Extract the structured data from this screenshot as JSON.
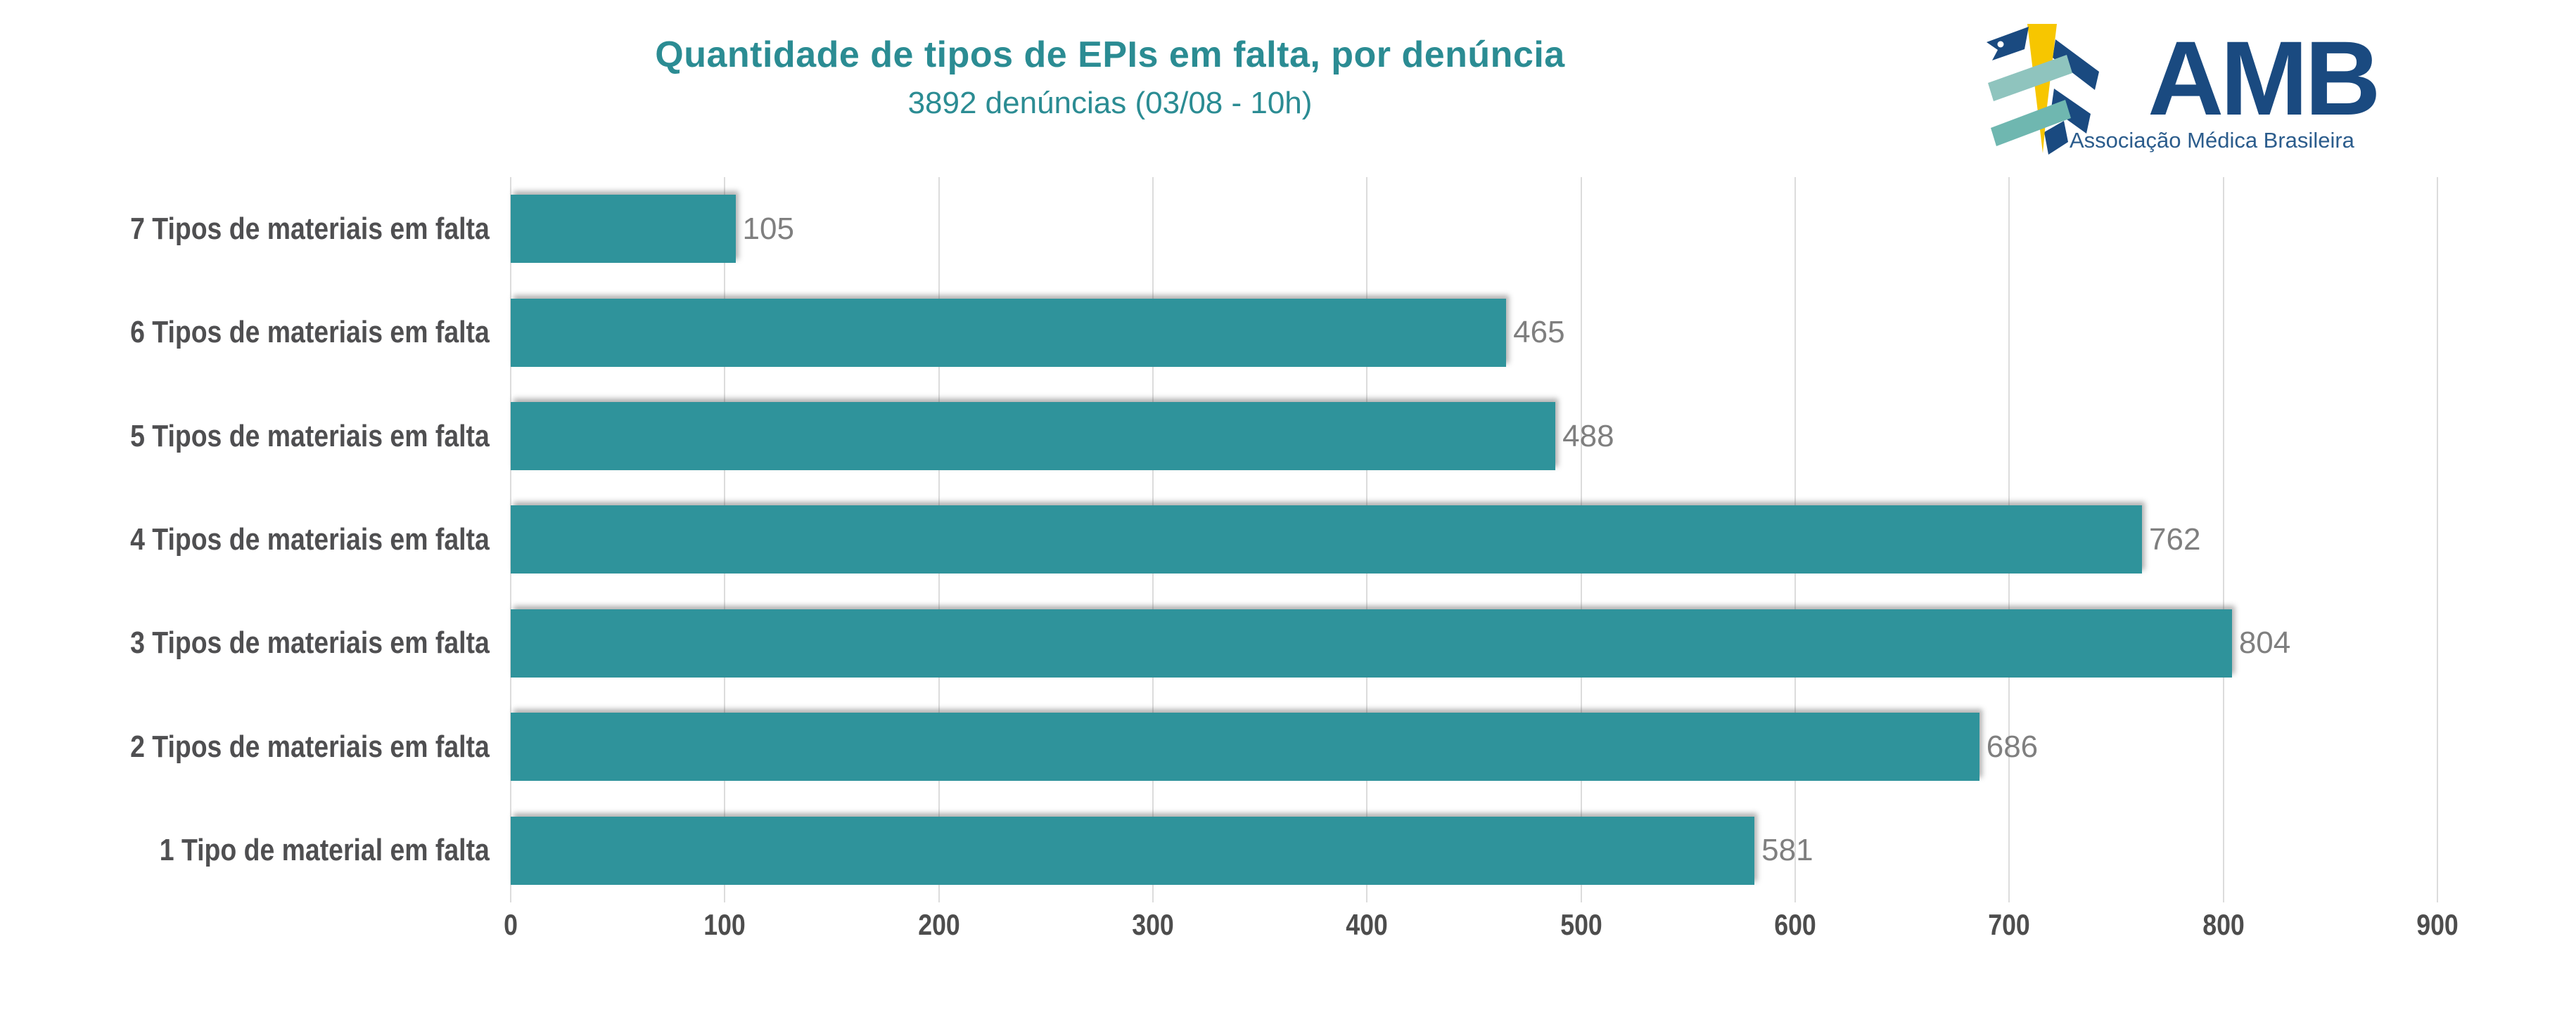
{
  "colors": {
    "title-teal": "#2B8C93",
    "bar-teal": "#2F939B",
    "category-gray": "#4F4F51",
    "value-gray": "#7F7F7F",
    "tick-gray": "#4D4D4D",
    "grid-gray": "#DCDCDC",
    "navy": "#1A4A80",
    "navy-soft": "#2B5C8C",
    "gold": "#F7C600",
    "seafoam": "#8FC4BE",
    "seafoam-dark": "#6FB7B0"
  },
  "logo": {
    "acronym": "AMB",
    "name": "Associação Médica Brasileira"
  },
  "chart_data": {
    "type": "bar",
    "orientation": "horizontal",
    "title": "Quantidade de tipos de EPIs em falta, por denúncia",
    "subtitle": "3892 denúncias (03/08 - 10h)",
    "categories": [
      "7 Tipos de materiais em falta",
      "6 Tipos de materiais em falta",
      "5 Tipos de materiais em falta",
      "4 Tipos de materiais em falta",
      "3 Tipos de materiais em falta",
      "2 Tipos de materiais em falta",
      "1 Tipo de material em falta"
    ],
    "values": [
      105,
      465,
      488,
      762,
      804,
      686,
      581
    ],
    "xlim": [
      0,
      900
    ],
    "xticks": [
      0,
      100,
      200,
      300,
      400,
      500,
      600,
      700,
      800,
      900
    ],
    "grid": true,
    "legend": "none",
    "value_labels": "end-of-bar"
  }
}
